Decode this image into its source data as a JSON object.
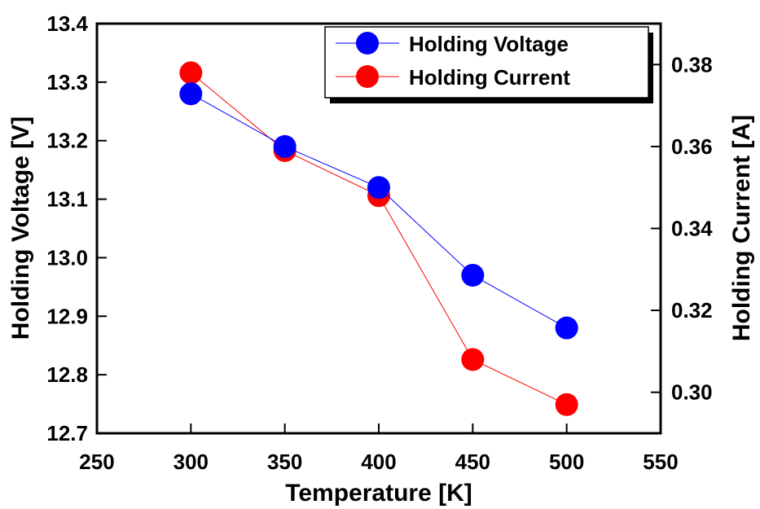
{
  "chart_data": {
    "type": "scatter",
    "xlabel": "Temperature [K]",
    "ylabel_left": "Holding Voltage [V]",
    "ylabel_right": "Holding Current [A]",
    "xlim": [
      250,
      550
    ],
    "ylim_left": [
      12.7,
      13.4
    ],
    "ylim_right": [
      0.29,
      0.39
    ],
    "x_ticks": [
      "250",
      "300",
      "350",
      "400",
      "450",
      "500",
      "550"
    ],
    "y_left_ticks": [
      "12.7",
      "12.8",
      "12.9",
      "13.0",
      "13.1",
      "13.2",
      "13.3",
      "13.4"
    ],
    "y_right_ticks": [
      "0.30",
      "0.32",
      "0.34",
      "0.36",
      "0.38"
    ],
    "grid": false,
    "legend_position": "top-right",
    "series": [
      {
        "name": "Holding Voltage",
        "axis": "left",
        "color": "#0000ff",
        "x": [
          300,
          350,
          400,
          450,
          500
        ],
        "y": [
          13.28,
          13.19,
          13.12,
          12.97,
          12.88
        ]
      },
      {
        "name": "Holding Current",
        "axis": "right",
        "color": "#ff0000",
        "x": [
          300,
          350,
          400,
          450,
          500
        ],
        "y": [
          0.378,
          0.359,
          0.348,
          0.308,
          0.297
        ]
      }
    ]
  }
}
